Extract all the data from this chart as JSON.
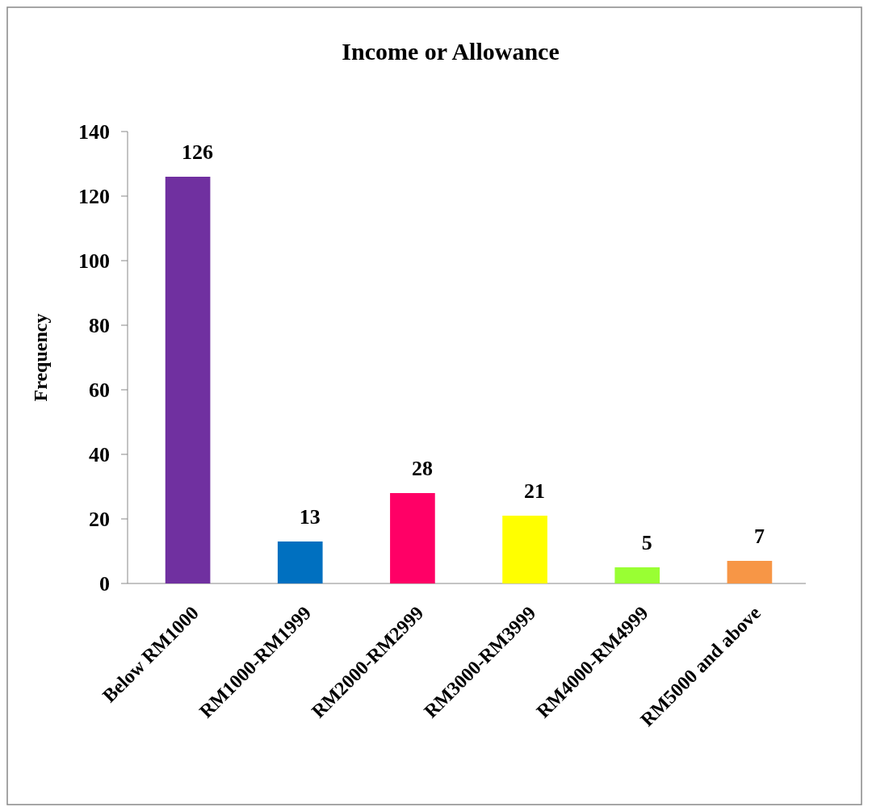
{
  "chart_data": {
    "type": "bar",
    "title": "Income or Allowance",
    "ylabel": "Frequency",
    "categories": [
      "Below RM1000",
      "RM1000-RM1999",
      "RM2000-RM2999",
      "RM3000-RM3999",
      "RM4000-RM4999",
      "RM5000 and above"
    ],
    "values": [
      126,
      13,
      28,
      21,
      5,
      7
    ],
    "colors": [
      "#7030a0",
      "#0070c0",
      "#ff0066",
      "#ffff00",
      "#99ff33",
      "#f79646"
    ],
    "ylim": [
      0,
      140
    ],
    "yticks": [
      0,
      20,
      40,
      60,
      80,
      100,
      120,
      140
    ],
    "data_labels": true
  }
}
